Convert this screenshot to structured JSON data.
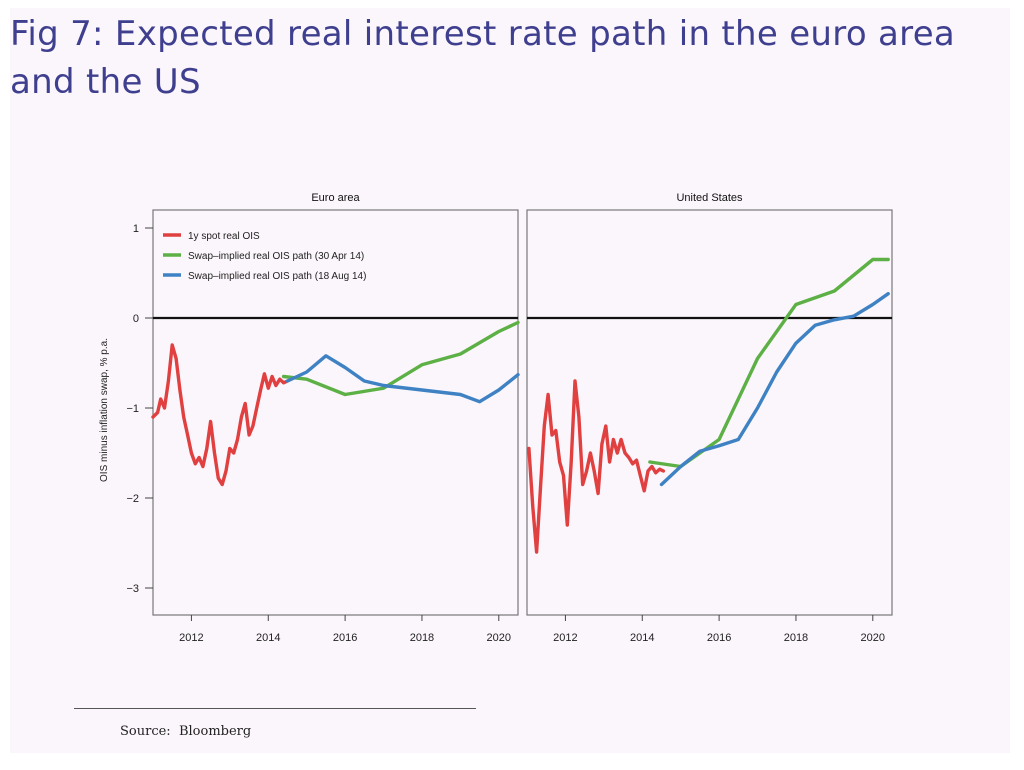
{
  "slide": {
    "title": "Fig 7: Expected real interest rate path in the euro area and the US",
    "source_label": "Source:",
    "source_name": "Bloomberg"
  },
  "colors": {
    "spot": "#e04040",
    "apr": "#5db046",
    "aug": "#3f82c4",
    "zero_line": "#111111",
    "title": "#3f3f8f"
  },
  "chart_data": {
    "type": "line",
    "ylabel": "OIS minus inflation swap, % p.a.",
    "ylim": [
      -3.3,
      1.2
    ],
    "yticks": [
      1,
      0,
      -1,
      -2,
      -3
    ],
    "xlim": [
      2011.0,
      2020.5
    ],
    "xticks": [
      2012,
      2014,
      2016,
      2018,
      2020
    ],
    "legend": {
      "placement": "top-left",
      "entries": [
        "1y spot real OIS",
        "Swap–implied real OIS path (30 Apr 14)",
        "Swap–implied real OIS path (18 Aug 14)"
      ]
    },
    "panels": [
      {
        "title": "Euro area",
        "series": [
          {
            "name": "1y spot real OIS",
            "color_key": "spot",
            "x": [
              2011.0,
              2011.12,
              2011.2,
              2011.3,
              2011.4,
              2011.5,
              2011.6,
              2011.7,
              2011.8,
              2011.9,
              2012.0,
              2012.1,
              2012.2,
              2012.3,
              2012.4,
              2012.5,
              2012.6,
              2012.7,
              2012.8,
              2012.9,
              2013.0,
              2013.1,
              2013.2,
              2013.3,
              2013.4,
              2013.5,
              2013.6,
              2013.7,
              2013.8,
              2013.9,
              2014.0,
              2014.1,
              2014.2,
              2014.3,
              2014.4,
              2014.5
            ],
            "y": [
              -1.1,
              -1.05,
              -0.9,
              -1.0,
              -0.7,
              -0.3,
              -0.45,
              -0.8,
              -1.1,
              -1.3,
              -1.5,
              -1.62,
              -1.55,
              -1.65,
              -1.45,
              -1.15,
              -1.5,
              -1.78,
              -1.85,
              -1.7,
              -1.45,
              -1.5,
              -1.35,
              -1.1,
              -0.95,
              -1.3,
              -1.2,
              -1.0,
              -0.8,
              -0.62,
              -0.78,
              -0.65,
              -0.75,
              -0.68,
              -0.72,
              -0.7
            ]
          },
          {
            "name": "Swap–implied real OIS path (30 Apr 14)",
            "color_key": "apr",
            "x": [
              2014.4,
              2015.0,
              2016.0,
              2017.0,
              2018.0,
              2019.0,
              2020.0,
              2020.5
            ],
            "y": [
              -0.65,
              -0.68,
              -0.85,
              -0.78,
              -0.52,
              -0.4,
              -0.15,
              -0.05
            ]
          },
          {
            "name": "Swap–implied real OIS path (18 Aug 14)",
            "color_key": "aug",
            "x": [
              2014.5,
              2015.0,
              2015.5,
              2016.0,
              2016.5,
              2017.0,
              2018.0,
              2019.0,
              2019.5,
              2020.0,
              2020.5
            ],
            "y": [
              -0.7,
              -0.6,
              -0.42,
              -0.55,
              -0.7,
              -0.75,
              -0.8,
              -0.85,
              -0.93,
              -0.8,
              -0.63
            ]
          }
        ]
      },
      {
        "title": "United States",
        "series": [
          {
            "name": "1y spot real OIS",
            "color_key": "spot",
            "x": [
              2011.05,
              2011.15,
              2011.25,
              2011.35,
              2011.45,
              2011.55,
              2011.65,
              2011.75,
              2011.85,
              2011.95,
              2012.05,
              2012.15,
              2012.25,
              2012.35,
              2012.45,
              2012.55,
              2012.65,
              2012.75,
              2012.85,
              2012.95,
              2013.05,
              2013.15,
              2013.25,
              2013.35,
              2013.45,
              2013.55,
              2013.65,
              2013.75,
              2013.85,
              2013.95,
              2014.05,
              2014.15,
              2014.25,
              2014.35,
              2014.45,
              2014.55
            ],
            "y": [
              -1.45,
              -2.1,
              -2.6,
              -1.9,
              -1.2,
              -0.85,
              -1.3,
              -1.25,
              -1.6,
              -1.75,
              -2.3,
              -1.6,
              -0.7,
              -1.1,
              -1.85,
              -1.7,
              -1.5,
              -1.7,
              -1.95,
              -1.4,
              -1.2,
              -1.6,
              -1.35,
              -1.5,
              -1.35,
              -1.5,
              -1.55,
              -1.62,
              -1.58,
              -1.75,
              -1.92,
              -1.7,
              -1.65,
              -1.72,
              -1.68,
              -1.7
            ]
          },
          {
            "name": "Swap–implied real OIS path (30 Apr 14)",
            "color_key": "apr",
            "x": [
              2014.2,
              2015.0,
              2016.0,
              2017.0,
              2018.0,
              2019.0,
              2020.0,
              2020.4
            ],
            "y": [
              -1.6,
              -1.65,
              -1.35,
              -0.45,
              0.15,
              0.3,
              0.65,
              0.65
            ]
          },
          {
            "name": "Swap–implied real OIS path (18 Aug 14)",
            "color_key": "aug",
            "x": [
              2014.5,
              2015.0,
              2015.5,
              2016.0,
              2016.5,
              2017.0,
              2017.5,
              2018.0,
              2018.5,
              2019.0,
              2019.5,
              2020.0,
              2020.4
            ],
            "y": [
              -1.85,
              -1.65,
              -1.48,
              -1.42,
              -1.35,
              -1.0,
              -0.6,
              -0.28,
              -0.08,
              -0.02,
              0.02,
              0.15,
              0.27
            ]
          }
        ]
      }
    ]
  }
}
